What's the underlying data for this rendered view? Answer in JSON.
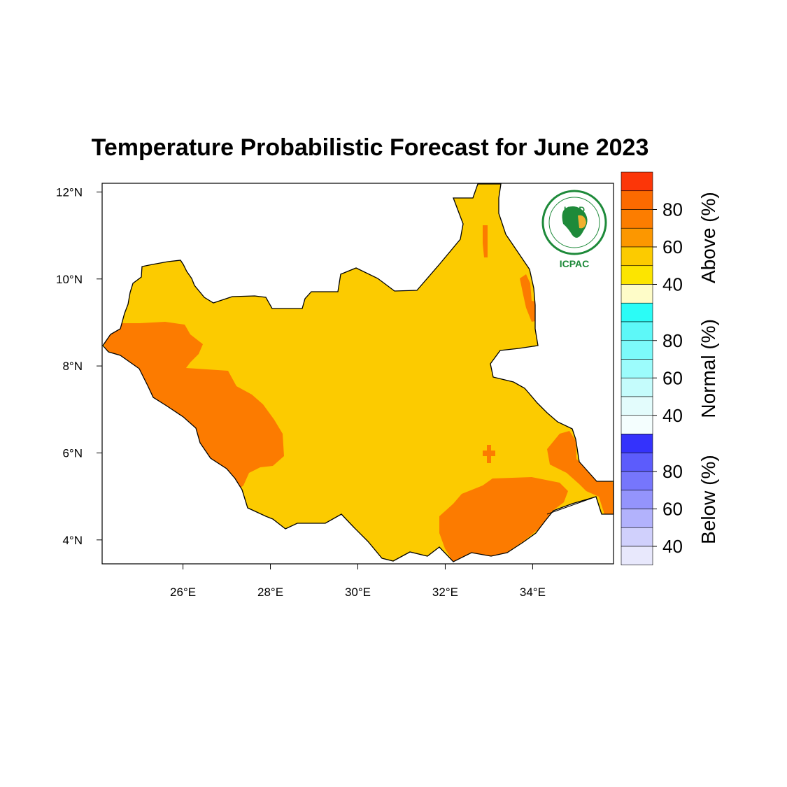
{
  "title": "Temperature Probabilistic Forecast for June 2023",
  "map": {
    "region": "South Sudan",
    "lon_ticks": [
      "26°E",
      "28°E",
      "30°E",
      "32°E",
      "34°E"
    ],
    "lat_ticks": [
      "12°N",
      "10°N",
      "8°N",
      "6°N",
      "4°N"
    ],
    "lon_range": [
      24.15,
      35.85
    ],
    "lat_range": [
      3.45,
      12.2
    ],
    "fill_dominant": {
      "category": "Above",
      "color": "#fccb00"
    },
    "fill_secondary": {
      "category": "Above",
      "color": "#fc7b00"
    }
  },
  "logo": {
    "emblem_text": "IGAD",
    "caption": "ICPAC"
  },
  "colorbar": {
    "groups": [
      {
        "name": "Above (%)",
        "labels": [
          "80",
          "60",
          "40"
        ],
        "colors": [
          "#fc3608",
          "#fc6a00",
          "#fc7d00",
          "#fc9700",
          "#fccb00",
          "#fce500",
          "#fefcc8"
        ]
      },
      {
        "name": "Normal (%)",
        "labels": [
          "80",
          "60",
          "40"
        ],
        "colors": [
          "#2bfcf6",
          "#5df8f8",
          "#7cfafa",
          "#9cfcfc",
          "#c5fcfc",
          "#e3fcfc",
          "#f4fefe"
        ]
      },
      {
        "name": "Below (%)",
        "labels": [
          "80",
          "60",
          "40"
        ],
        "colors": [
          "#3432fc",
          "#5c5cfc",
          "#7676fc",
          "#9494fc",
          "#b2b2fc",
          "#d0d0fc",
          "#e8e8fc"
        ]
      }
    ]
  }
}
